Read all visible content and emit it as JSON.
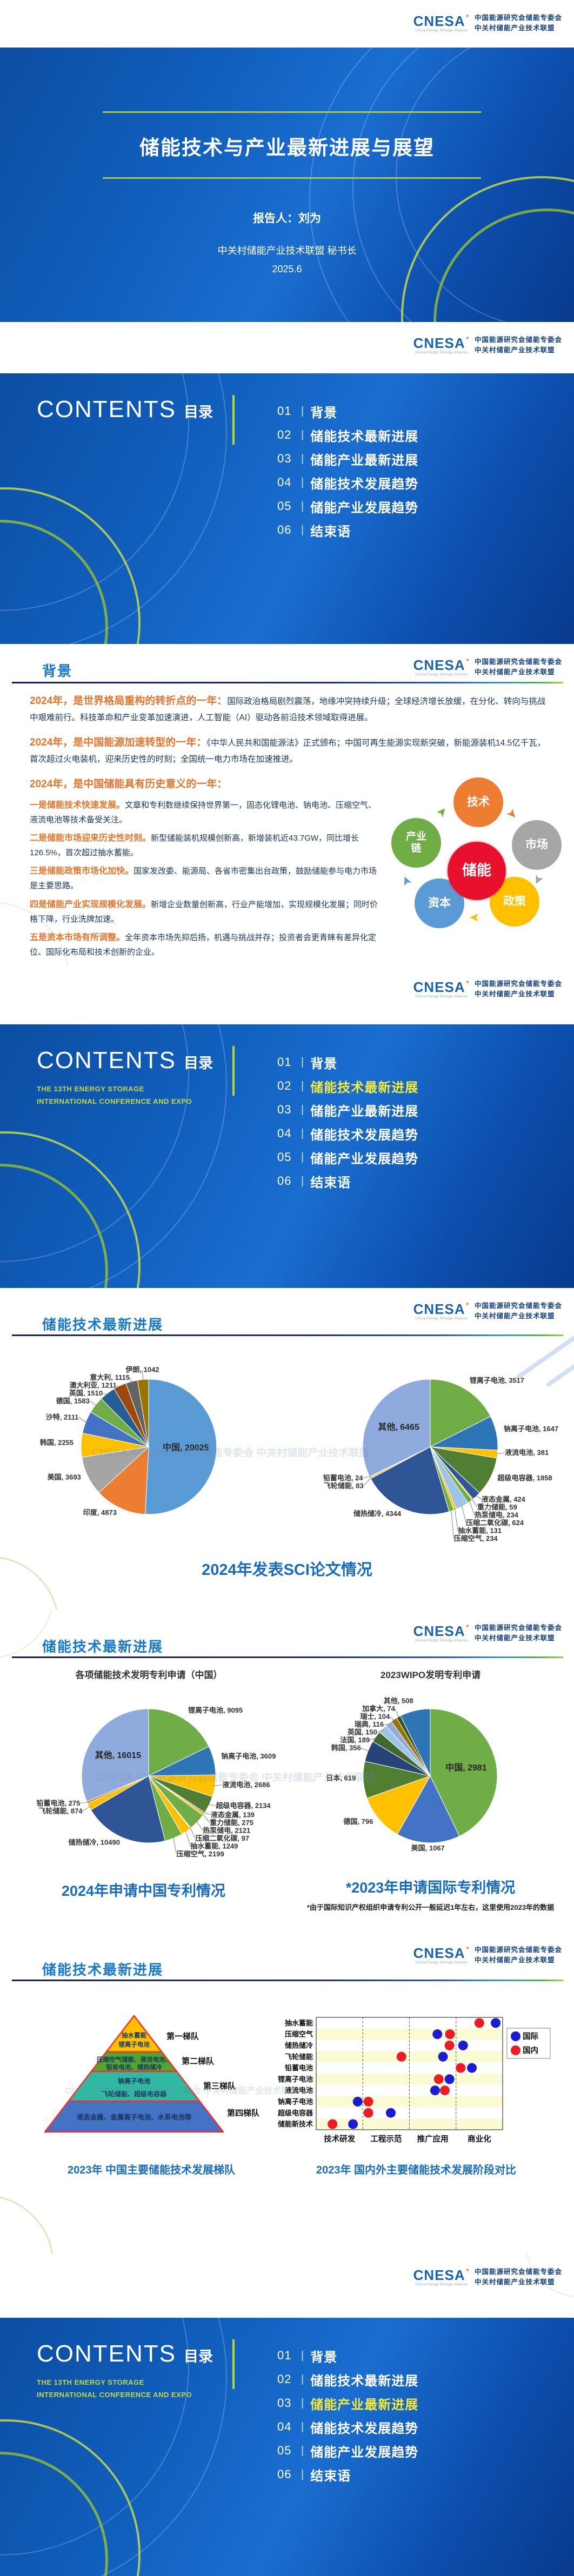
{
  "logo": {
    "brand": "CNESA",
    "star": "✦",
    "sub": "China Energy Storage Alliance",
    "org_line1": "中国能源研究会储能专委会",
    "org_line2": "中关村储能产业技术联盟"
  },
  "watermark": "CNESA  中国能源研究会储能专委会 中关村储能产业技术联盟",
  "title_slide": {
    "title": "储能技术与产业最新进展与展望",
    "speaker": "报告人：刘为",
    "org": "中关村储能产业技术联盟  秘书长",
    "date": "2025.6"
  },
  "contents": {
    "heading": "CONTENTS",
    "heading_cn": "目录",
    "subtitle1": "THE 13TH ENERGY STORAGE",
    "subtitle2": "INTERNATIONAL CONFERENCE AND EXPO",
    "items": [
      {
        "num": "01",
        "label": "背景"
      },
      {
        "num": "02",
        "label": "储能技术最新进展"
      },
      {
        "num": "03",
        "label": "储能产业最新进展"
      },
      {
        "num": "04",
        "label": "储能技术发展趋势"
      },
      {
        "num": "05",
        "label": "储能产业发展趋势"
      },
      {
        "num": "06",
        "label": "结束语"
      }
    ],
    "highlight_color": "#F3EA3C"
  },
  "section_headers": {
    "bg": "背景",
    "tech": "储能技术最新进展"
  },
  "background": {
    "paragraphs": [
      {
        "lead": "2024年，是世界格局重构的转折点的一年：",
        "body": "国际政治格局剧烈震荡，地缘冲突持续升级；全球经济增长放缓，在分化、转向与挑战中艰难前行。科技革命和产业变革加速演进，人工智能（AI）驱动各前沿技术领域取得进展。"
      },
      {
        "lead": "2024年，是中国能源加速转型的一年：",
        "body": "《中华人民共和国能源法》正式颁布；中国可再生能源实现新突破，新能源装机14.5亿千瓦，首次超过火电装机，迎来历史性的时刻；全国统一电力市场在加速推进。"
      },
      {
        "lead": "2024年，是中国储能具有历史意义的一年：",
        "body": ""
      }
    ],
    "bullets": [
      {
        "lead": "一是储能技术快速发展。",
        "body": "文章和专利数继续保持世界第一，固态化锂电池、钠电池、压缩空气、液流电池等技术备受关注。"
      },
      {
        "lead": "二是储能市场迎来历史性时刻。",
        "body": "新型储能装机规模创新高，新增装机近43.7GW，同比增长126.5%，首次超过抽水蓄能。"
      },
      {
        "lead": "三是储能政策市场化加快。",
        "body": "国家发改委、能源局、各省市密集出台政策，鼓励储能参与电力市场是主要思路。"
      },
      {
        "lead": "四是储能产业实现规模化发展。",
        "body": "新增企业数量创新高，行业产能增加，实现规模化发展；同时价格下降，行业洗牌加速。"
      },
      {
        "lead": "五是资本市场有所调整。",
        "body": "全年资本市场先抑后扬，机遇与挑战并存；投资者会更青睐有差异化定位、国际化布局和技术创新的企业。"
      }
    ],
    "diagram": {
      "center": {
        "label": "储能",
        "color": "#E8112D"
      },
      "nodes": [
        {
          "label": "技术",
          "color": "#ED7D31"
        },
        {
          "label": "市场",
          "color": "#A6A6A6"
        },
        {
          "label": "政策",
          "color": "#FFC000"
        },
        {
          "label": "资本",
          "color": "#5B9BD5"
        },
        {
          "label": "产业链",
          "color": "#70AD47"
        }
      ]
    }
  },
  "chart_data": [
    {
      "id": "sci_country",
      "type": "pie",
      "caption": "2024年发表SCI论文情况",
      "labels": [
        "中国",
        "印度",
        "美国",
        "韩国",
        "沙特",
        "德国",
        "英国",
        "澳大利亚",
        "意大利",
        "伊朗"
      ],
      "values": [
        20025,
        4873,
        3693,
        2255,
        2111,
        1583,
        1510,
        1211,
        1115,
        1042
      ],
      "colors": [
        "#5B9BD5",
        "#ED7D31",
        "#A5A5A5",
        "#FFC000",
        "#4472C4",
        "#70AD47",
        "#255E91",
        "#9E480E",
        "#636363",
        "#997300"
      ]
    },
    {
      "id": "sci_tech",
      "type": "pie",
      "caption": "2024年发表SCI论文情况",
      "labels": [
        "锂离子电池",
        "钠离子电池",
        "液流电池",
        "超级电容器",
        "液态金属",
        "重力储能",
        "热泵储电",
        "压缩二氧化碳",
        "抽水蓄能",
        "压缩空气",
        "储热储冷",
        "飞轮储能",
        "铅蓄电池",
        "其他"
      ],
      "values": [
        3517,
        1647,
        381,
        1858,
        424,
        59,
        234,
        624,
        131,
        234,
        4344,
        83,
        24,
        6465
      ],
      "colors": [
        "#70AD47",
        "#2E75B6",
        "#FFC000",
        "#507E32",
        "#2F5597",
        "#FFC000",
        "#70AD47",
        "#9DC3E6",
        "#FFC000",
        "#70AD47",
        "#2F5597",
        "#FFC000",
        "#ED7D31",
        "#8FAADC"
      ]
    },
    {
      "id": "patent_cn",
      "type": "pie",
      "title": "各项储能技术发明专利申请（中国）",
      "caption": "2024年申请中国专利情况",
      "labels": [
        "锂离子电池",
        "钠离子电池",
        "液流电池",
        "超级电容器",
        "液态金属",
        "重力储能",
        "热泵储电",
        "压缩二氧化碳",
        "抽水蓄能",
        "压缩空气",
        "储热储冷",
        "飞轮储能",
        "铅蓄电池",
        "其他"
      ],
      "values": [
        9095,
        3609,
        2686,
        2134,
        139,
        275,
        2121,
        97,
        1249,
        2199,
        10490,
        874,
        275,
        16015
      ],
      "colors": [
        "#70AD47",
        "#2E75B6",
        "#FFC000",
        "#507E32",
        "#2F5597",
        "#FFC000",
        "#70AD47",
        "#9DC3E6",
        "#FFC000",
        "#70AD47",
        "#2F5597",
        "#FFC000",
        "#ED7D31",
        "#8FAADC"
      ]
    },
    {
      "id": "patent_wipo",
      "type": "pie",
      "title": "2023WIPO发明专利申请",
      "caption": "*2023年申请国际专利情况",
      "footnote": "*由于国际知识产权组织申请专利公开一般延迟1年左右，这里使用2023年的数据",
      "labels": [
        "中国",
        "美国",
        "德国",
        "日本",
        "韩国",
        "法国",
        "英国",
        "瑞典",
        "瑞士",
        "加拿大",
        "其他"
      ],
      "values": [
        2981,
        1067,
        796,
        619,
        356,
        189,
        150,
        116,
        104,
        74,
        508
      ],
      "colors": [
        "#70AD47",
        "#4472C4",
        "#FFC000",
        "#507E32",
        "#264478",
        "#43682B",
        "#9DC3E6",
        "#8FAADC",
        "#997300",
        "#385723",
        "#2E75B6"
      ]
    },
    {
      "id": "stage_compare",
      "type": "scatter",
      "caption": "2023年 国内外主要储能技术发展阶段对比",
      "rows": [
        "抽水蓄能",
        "压缩空气",
        "储热储冷",
        "飞轮储能",
        "铅蓄电池",
        "锂离子电池",
        "液流电池",
        "钠离子电池",
        "超级电容器",
        "储能新技术"
      ],
      "x_categories": [
        "技术研发",
        "工程示范",
        "推广应用",
        "商业化"
      ],
      "x_range": [
        0,
        4
      ],
      "legend": [
        {
          "name": "国际",
          "color": "#1B1BD1"
        },
        {
          "name": "国内",
          "color": "#EC1C24"
        }
      ],
      "series": [
        {
          "name": "国际",
          "color": "#1B1BD1",
          "x": [
            3.85,
            2.6,
            3.15,
            2.72,
            3.34,
            2.86,
            2.55,
            0.89,
            1.6,
            0.79
          ]
        },
        {
          "name": "国内",
          "color": "#EC1C24",
          "x": [
            3.5,
            2.87,
            2.86,
            1.83,
            3.1,
            2.63,
            2.76,
            1.12,
            1.12,
            0.35
          ]
        }
      ]
    },
    {
      "id": "tiers",
      "type": "pyramid",
      "caption": "2023年 中国主要储能技术发展梯队",
      "tiers": [
        {
          "label": "第一梯队",
          "color": "#FFC000",
          "lines": [
            "抽水蓄能",
            "锂离子电池"
          ]
        },
        {
          "label": "第二梯队",
          "color": "#4EA72E",
          "lines": [
            "压缩空气储能、液流电池、",
            "铅炭电池、储热储冷"
          ]
        },
        {
          "label": "第三梯队",
          "color": "#2FB8A2",
          "lines": [
            "钠离子电池",
            "飞轮储能、超级电容器"
          ]
        },
        {
          "label": "第四梯队",
          "color": "#4472C4",
          "lines": [
            "液态金属、金属离子电池、水系电池等"
          ]
        }
      ]
    }
  ]
}
